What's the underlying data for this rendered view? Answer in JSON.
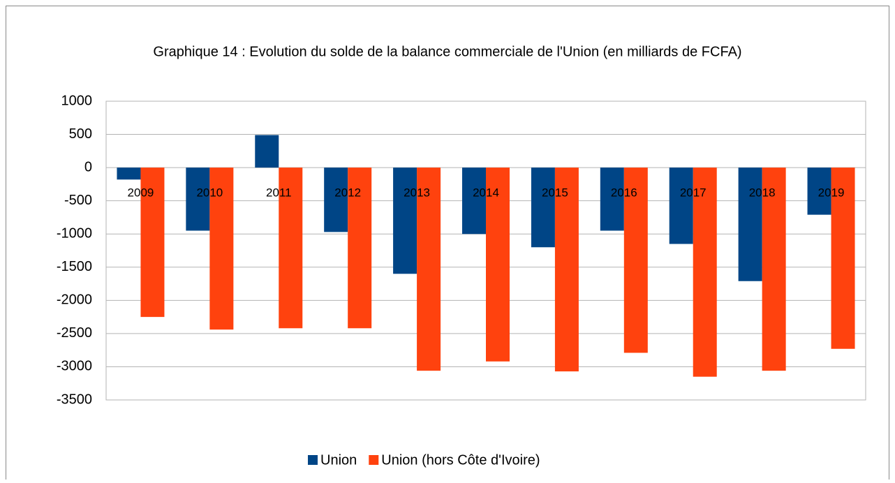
{
  "chart_data": {
    "type": "bar",
    "title": "Graphique 14  : Evolution du solde de la balance commerciale de l'Union (en milliards de FCFA)",
    "categories": [
      "2009",
      "2010",
      "2011",
      "2012",
      "2013",
      "2014",
      "2015",
      "2016",
      "2017",
      "2018",
      "2019"
    ],
    "series": [
      {
        "name": "Union",
        "color": "#004586",
        "values": [
          -180,
          -950,
          490,
          -970,
          -1600,
          -1000,
          -1200,
          -950,
          -1150,
          -1710,
          -710
        ]
      },
      {
        "name": "Union (hors Côte d'Ivoire)",
        "color": "#ff420e",
        "values": [
          -2250,
          -2440,
          -2420,
          -2420,
          -3060,
          -2920,
          -3070,
          -2790,
          -3150,
          -3060,
          -2730
        ]
      }
    ],
    "ylim": [
      -3500,
      1000
    ],
    "yticks": [
      -3500,
      -3000,
      -2500,
      -2000,
      -1500,
      -1000,
      -500,
      0,
      500,
      1000
    ],
    "grid": true,
    "legend": "bottom"
  }
}
